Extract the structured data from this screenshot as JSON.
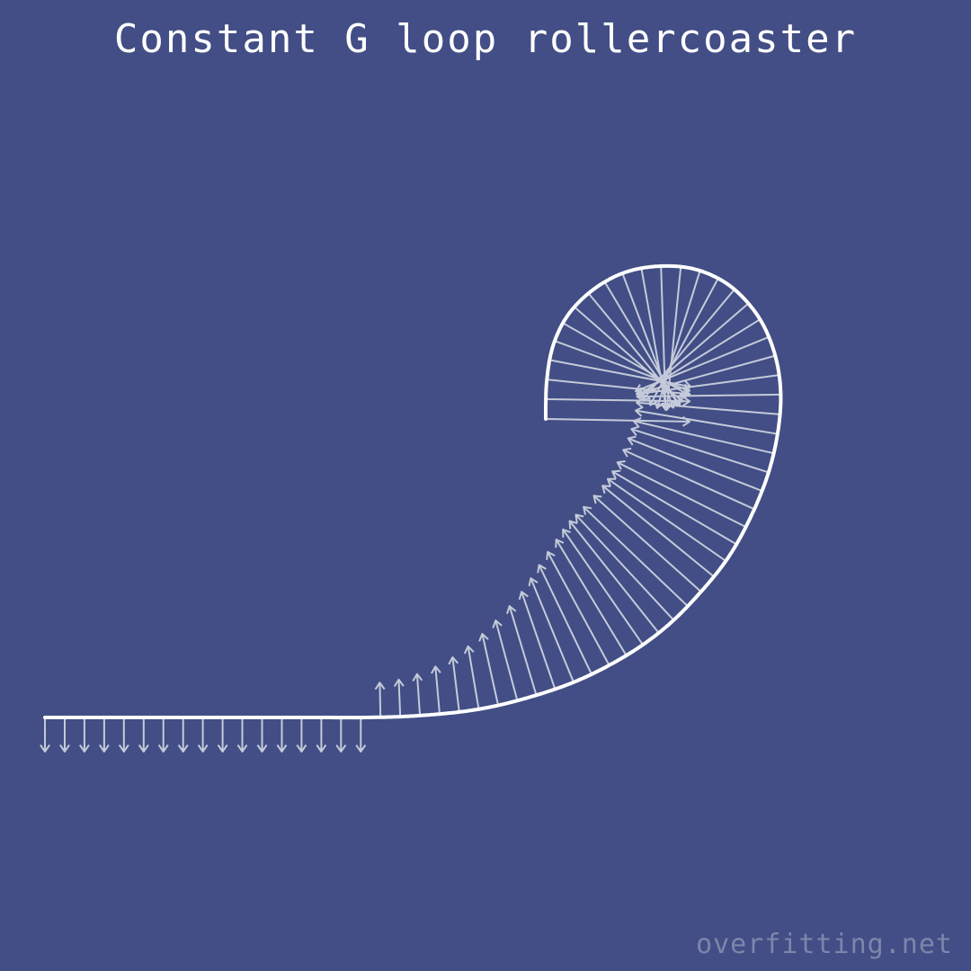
{
  "title": "Constant G loop rollercoaster",
  "watermark": "overfitting.net",
  "colors": {
    "background": "#424e85",
    "track": "#ffffff",
    "arrows": "#c4cad9",
    "title": "#ffffff",
    "watermark": "#7d85aa"
  }
}
